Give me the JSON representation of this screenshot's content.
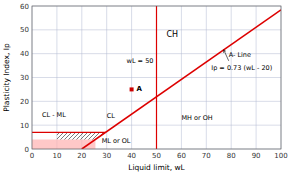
{
  "chart_data": {
    "type": "line",
    "xlabel": "Liquid limit, wL",
    "ylabel": "Plasticity Index, Ip",
    "xlim": [
      0,
      100
    ],
    "ylim": [
      0,
      60
    ],
    "xticks": [
      0,
      10,
      20,
      30,
      40,
      50,
      60,
      70,
      80,
      90,
      100
    ],
    "yticks": [
      0,
      10,
      20,
      30,
      40,
      50,
      60
    ],
    "grid": true,
    "grid_color": "#b0b8d0",
    "series": [
      {
        "type": "area",
        "x": [
          0,
          25.47945205
        ],
        "values": [
          4,
          4
        ],
        "color": "#ffb0b0"
      },
      {
        "type": "polygon",
        "x": [
          10,
          25.47945205,
          29.5890411,
          10
        ],
        "values": [
          4,
          4,
          7,
          7
        ],
        "color": "#222222"
      },
      {
        "type": "line",
        "x": [
          20,
          100
        ],
        "values": [
          0,
          58.4
        ],
        "color": "#dd0000"
      },
      {
        "type": "line",
        "x": [
          0,
          29.5890411
        ],
        "values": [
          7,
          7
        ],
        "color": "#dd0000"
      },
      {
        "type": "vline",
        "x": [
          50
        ],
        "color": "#dd0000"
      },
      {
        "type": "scatter",
        "x": [
          40
        ],
        "values": [
          25
        ],
        "color": "#cc0000",
        "marker": "square"
      }
    ],
    "annotations": [
      {
        "text": "A",
        "x": 42,
        "y": 25
      },
      {
        "text": "CH",
        "x": 54,
        "y": 47
      },
      {
        "text": "CL",
        "x": 30,
        "y": 13
      },
      {
        "text": "CL - ML",
        "x": 4,
        "y": 13.5
      },
      {
        "text": "ML or OL",
        "x": 28,
        "y": 2.5
      },
      {
        "text": "MH or OH",
        "x": 60,
        "y": 12
      },
      {
        "text": "wL = 50",
        "x": 38,
        "y": 36
      },
      {
        "text": "A- Line",
        "x": 79,
        "y": 38.5
      },
      {
        "text": "Ip = 0.73 (wL - 20)",
        "x": 72,
        "y": 33
      }
    ],
    "arrows": [
      {
        "from": [
          79,
          37
        ],
        "to": [
          77,
          41.61
        ]
      }
    ]
  }
}
